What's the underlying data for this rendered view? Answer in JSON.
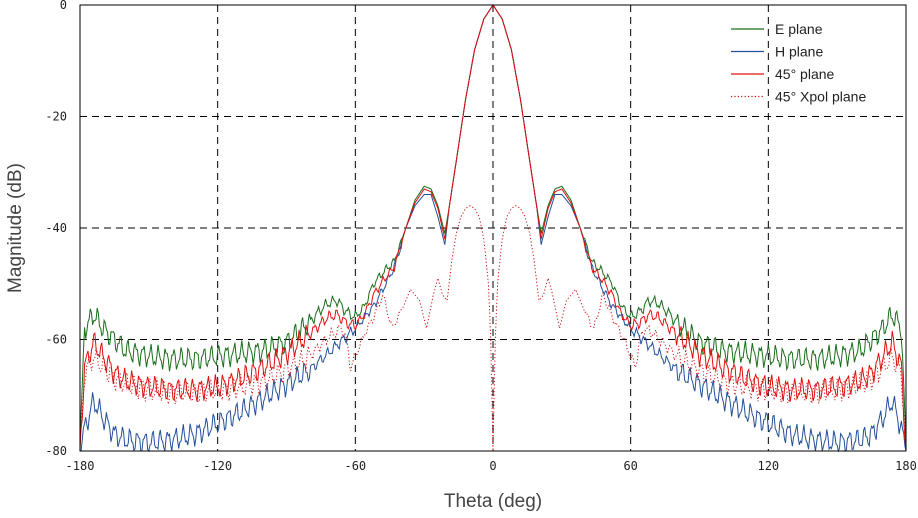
{
  "chart_data": {
    "type": "line",
    "xlabel": "Theta (deg)",
    "ylabel": "Magnitude (dB)",
    "xlim": [
      -180,
      180
    ],
    "ylim": [
      -80,
      0
    ],
    "xticks": [
      -180,
      -120,
      -60,
      0,
      60,
      120,
      180
    ],
    "yticks": [
      0,
      -20,
      -40,
      -60,
      -80
    ],
    "xtick_labels": [
      "-180",
      "-120",
      "-60",
      "0",
      "60",
      "120",
      "180"
    ],
    "ytick_labels": [
      "0",
      "-20",
      "-40",
      "-60",
      "-80"
    ],
    "grid": true,
    "legend_position": "top-right",
    "symmetric_about_zero": true,
    "series": [
      {
        "name": "E plane",
        "color": "#1a6e1a",
        "style": "solid",
        "x": [
          0,
          4,
          8,
          12,
          16,
          19,
          21,
          24,
          27,
          30,
          34,
          38,
          43,
          48,
          52,
          56,
          60,
          64,
          68,
          72,
          76,
          80,
          90,
          100,
          110,
          120,
          130,
          140,
          150,
          160,
          165,
          170,
          174,
          178,
          180
        ],
        "y": [
          0,
          -2.5,
          -8,
          -17,
          -28,
          -36,
          -41,
          -36,
          -33,
          -32.5,
          -35,
          -40,
          -46,
          -48,
          -50,
          -54,
          -56,
          -55,
          -53,
          -53.5,
          -55,
          -57,
          -60.5,
          -62,
          -62.5,
          -63,
          -63.5,
          -63.5,
          -63,
          -62,
          -60,
          -58,
          -55.5,
          -58,
          -80
        ]
      },
      {
        "name": "H plane",
        "color": "#24509a",
        "style": "solid",
        "x": [
          0,
          4,
          8,
          12,
          16,
          19,
          21,
          24,
          27,
          30,
          34,
          38,
          43,
          48,
          52,
          56,
          60,
          64,
          68,
          72,
          76,
          80,
          90,
          100,
          110,
          120,
          130,
          140,
          150,
          160,
          165,
          170,
          174,
          178,
          180
        ],
        "y": [
          0,
          -2.5,
          -8,
          -17,
          -28,
          -36,
          -43,
          -38,
          -34,
          -34,
          -36,
          -40,
          -47,
          -51,
          -54,
          -56,
          -58,
          -59.5,
          -61,
          -62.5,
          -64,
          -65.5,
          -68,
          -70.5,
          -73,
          -75,
          -77,
          -78,
          -78.5,
          -78,
          -77,
          -74,
          -71,
          -76,
          -80
        ]
      },
      {
        "name": "45° plane",
        "color": "#e01010",
        "style": "solid",
        "x": [
          0,
          4,
          8,
          12,
          16,
          19,
          21,
          24,
          27,
          30,
          34,
          38,
          43,
          48,
          52,
          56,
          60,
          64,
          68,
          72,
          76,
          80,
          90,
          100,
          110,
          120,
          130,
          140,
          150,
          160,
          165,
          170,
          174,
          178,
          180
        ],
        "y": [
          0,
          -2.5,
          -8,
          -17,
          -28,
          -36,
          -42,
          -36.5,
          -33.5,
          -33,
          -35.5,
          -40,
          -47,
          -49.5,
          -52,
          -55.5,
          -57.5,
          -57,
          -55.5,
          -56,
          -57.5,
          -59,
          -62.5,
          -65,
          -67,
          -68.5,
          -69,
          -69,
          -68.5,
          -67.5,
          -66,
          -63,
          -60.5,
          -65,
          -80
        ]
      },
      {
        "name": "45° Xpol plane",
        "color": "#cc1111",
        "style": "dotted",
        "x": [
          0,
          1,
          2,
          4,
          6,
          8,
          10,
          12,
          14,
          16,
          18,
          20,
          22,
          24,
          26,
          29,
          32,
          36,
          40,
          44,
          48,
          52,
          56,
          58,
          60,
          62,
          64,
          66,
          70,
          75,
          80,
          90,
          100,
          110,
          120,
          130,
          140,
          150,
          160,
          165,
          170,
          174,
          178,
          180
        ],
        "y": [
          -80,
          -60,
          -50,
          -42,
          -38,
          -36.5,
          -36,
          -36.5,
          -38,
          -41,
          -46,
          -53,
          -52,
          -49,
          -52,
          -58,
          -53,
          -51,
          -55,
          -58,
          -52,
          -56,
          -59,
          -61,
          -63,
          -65,
          -60,
          -58,
          -59,
          -61,
          -63,
          -65.5,
          -67.5,
          -68.5,
          -69,
          -69.5,
          -69.5,
          -69,
          -68,
          -67,
          -65,
          -63,
          -66,
          -80
        ]
      }
    ]
  }
}
